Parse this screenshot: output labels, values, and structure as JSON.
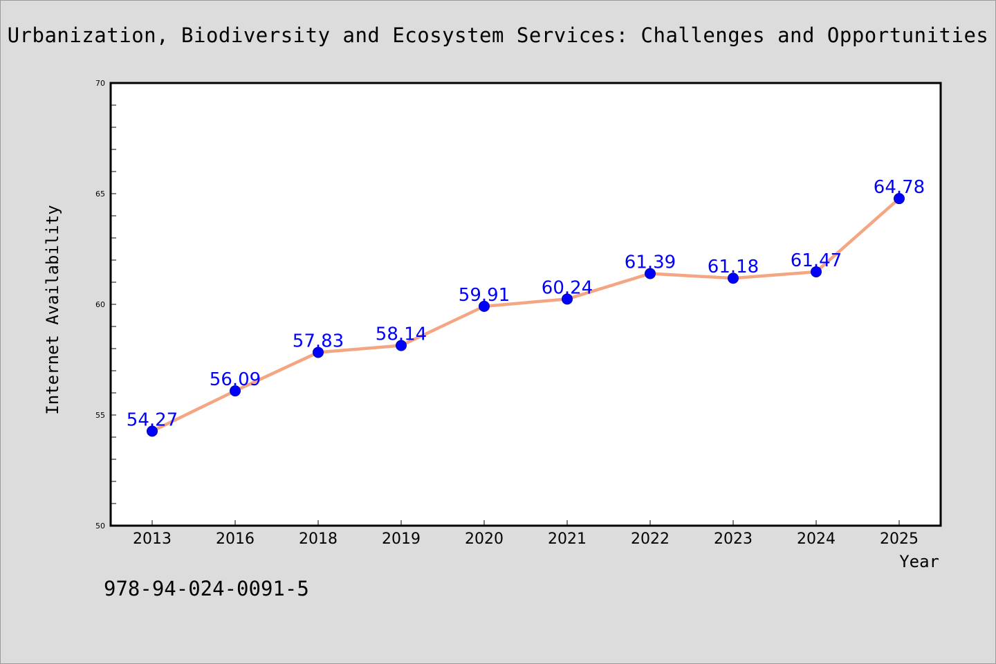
{
  "title": "Urbanization, Biodiversity and Ecosystem Services: Challenges and Opportunities",
  "footer_text": "978-94-024-0091-5",
  "chart_data": {
    "type": "line",
    "title": "Urbanization, Biodiversity and Ecosystem Services: Challenges and Opportunities",
    "xlabel": "Year",
    "ylabel": "Internet Availability",
    "categories": [
      "2013",
      "2016",
      "2018",
      "2019",
      "2020",
      "2021",
      "2022",
      "2023",
      "2024",
      "2025"
    ],
    "series": [
      {
        "values": [
          54.27,
          56.09,
          57.83,
          58.14,
          59.91,
          60.24,
          61.39,
          61.18,
          61.47,
          64.78
        ],
        "value_labels": [
          "54.27",
          "56.09",
          "57.83",
          "58.14",
          "59.91",
          "60.24",
          "61.39",
          "61.18",
          "61.47",
          "64.78"
        ],
        "line_color": "#f4a582",
        "marker_color": "#0000ff",
        "label_color": "#0000ff"
      }
    ],
    "ylim": [
      50,
      70
    ],
    "yticks": [
      50,
      55,
      60,
      65,
      70
    ],
    "ytick_labels": [
      "50",
      "55",
      "60",
      "65",
      "70"
    ],
    "grid": false,
    "legend": "none",
    "background": "#ffffff",
    "page_background": "#dcdcdc"
  }
}
